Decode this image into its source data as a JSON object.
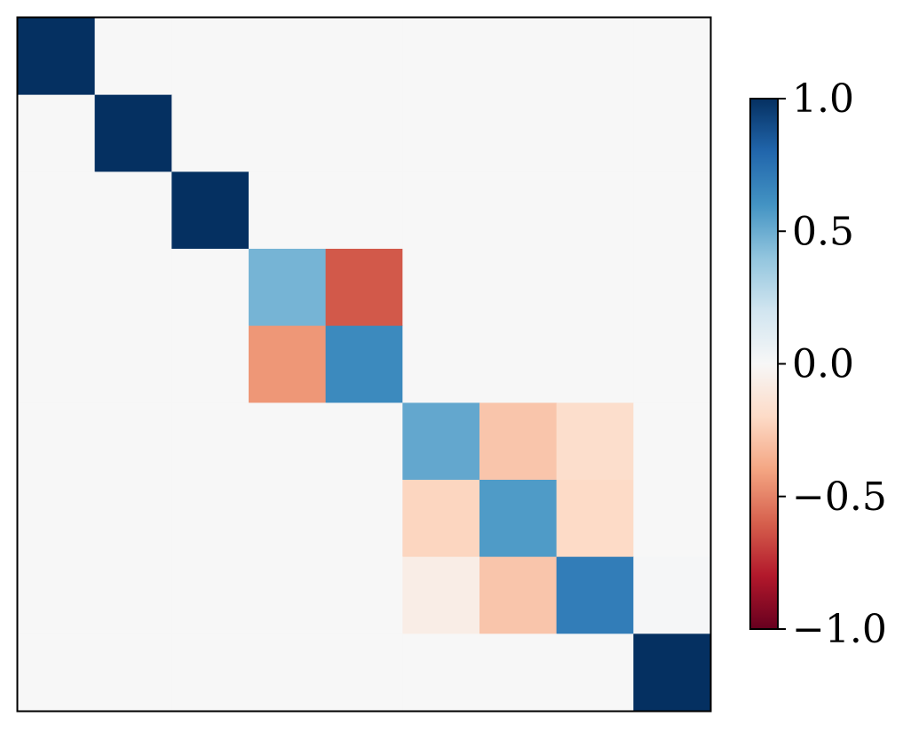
{
  "chart_data": {
    "type": "heatmap",
    "rows": 9,
    "cols": 9,
    "values": [
      [
        1.0,
        0,
        0,
        0,
        0,
        0,
        0,
        0,
        0
      ],
      [
        0,
        1.0,
        0,
        0,
        0,
        0,
        0,
        0,
        0
      ],
      [
        0,
        0,
        1.0,
        0,
        0,
        0,
        0,
        0,
        0
      ],
      [
        0,
        0,
        0,
        0.47,
        -0.62,
        0,
        0,
        0,
        0
      ],
      [
        0,
        0,
        0,
        -0.44,
        0.64,
        0,
        0,
        0,
        0
      ],
      [
        0,
        0,
        0,
        0,
        0,
        0.52,
        -0.28,
        -0.18,
        0
      ],
      [
        0,
        0,
        0,
        0,
        0,
        -0.22,
        0.57,
        -0.2,
        0
      ],
      [
        0,
        0,
        0,
        0,
        0,
        -0.07,
        -0.28,
        0.7,
        0.01
      ],
      [
        0,
        0,
        0,
        0,
        0,
        0,
        0,
        0,
        1.0
      ]
    ],
    "colorscale": "RdBu",
    "vmin": -1.0,
    "vmax": 1.0,
    "colorbar": {
      "ticks": [
        1.0,
        0.5,
        0.0,
        -0.5,
        -1.0
      ],
      "tick_labels": [
        "1.0",
        "0.5",
        "0.0",
        "−0.5",
        "−1.0"
      ]
    },
    "show_axis_ticks": false,
    "grid": false
  }
}
